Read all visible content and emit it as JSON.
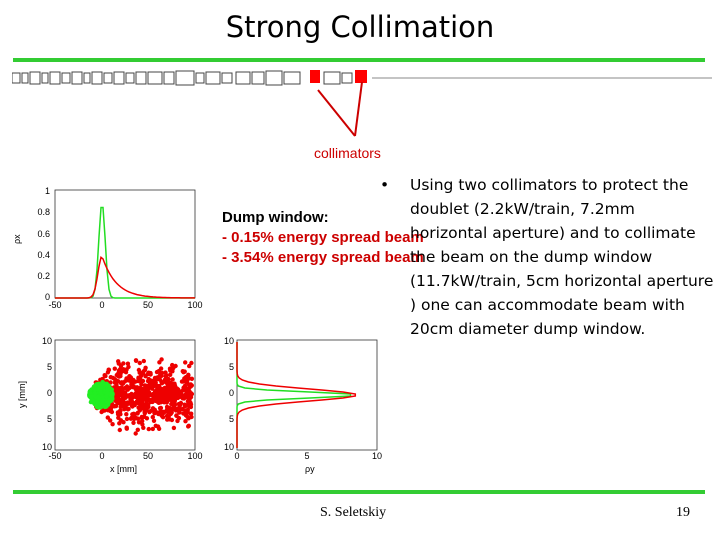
{
  "title": "Strong Collimation",
  "collimator_label": "collimators",
  "dump_window": {
    "title": "Dump window:",
    "lines": [
      "- 0.15% energy spread beam",
      "- 3.54% energy spread beam"
    ]
  },
  "bullet": {
    "marker": "•",
    "text": "Using two collimators to protect the doublet (2.2kW/train, 7.2mm horizontal aperture) and to collimate the beam on the dump window (11.7kW/train, 5cm horizontal aperture ) one can accommodate beam with 20cm diameter dump window."
  },
  "footer": {
    "author": "S. Seletskiy",
    "page": "19"
  },
  "colors": {
    "accent_rule": "#33cc33",
    "collimator": "#ff0000",
    "narrow_spread": "#22dd22",
    "wide_spread": "#ee0000"
  },
  "plot_labels": {
    "top_left": {
      "y_ticks": [
        "1",
        "0.8",
        "0.6",
        "0.4",
        "0.2",
        "0"
      ],
      "x_ticks": [
        "-50",
        "0",
        "50",
        "100"
      ],
      "ylabel": "ρx"
    },
    "bottom_left": {
      "y_ticks": [
        "10",
        "5",
        "0",
        "5",
        "10"
      ],
      "x_ticks": [
        "-50",
        "0",
        "50",
        "100"
      ],
      "xlabel": "x [mm]",
      "ylabel": "y [mm]"
    },
    "bottom_right": {
      "y_ticks": [
        "10",
        "5",
        "0",
        "5",
        "10"
      ],
      "x_ticks": [
        "0",
        "5",
        "10"
      ],
      "xlabel": "ρy"
    }
  }
}
